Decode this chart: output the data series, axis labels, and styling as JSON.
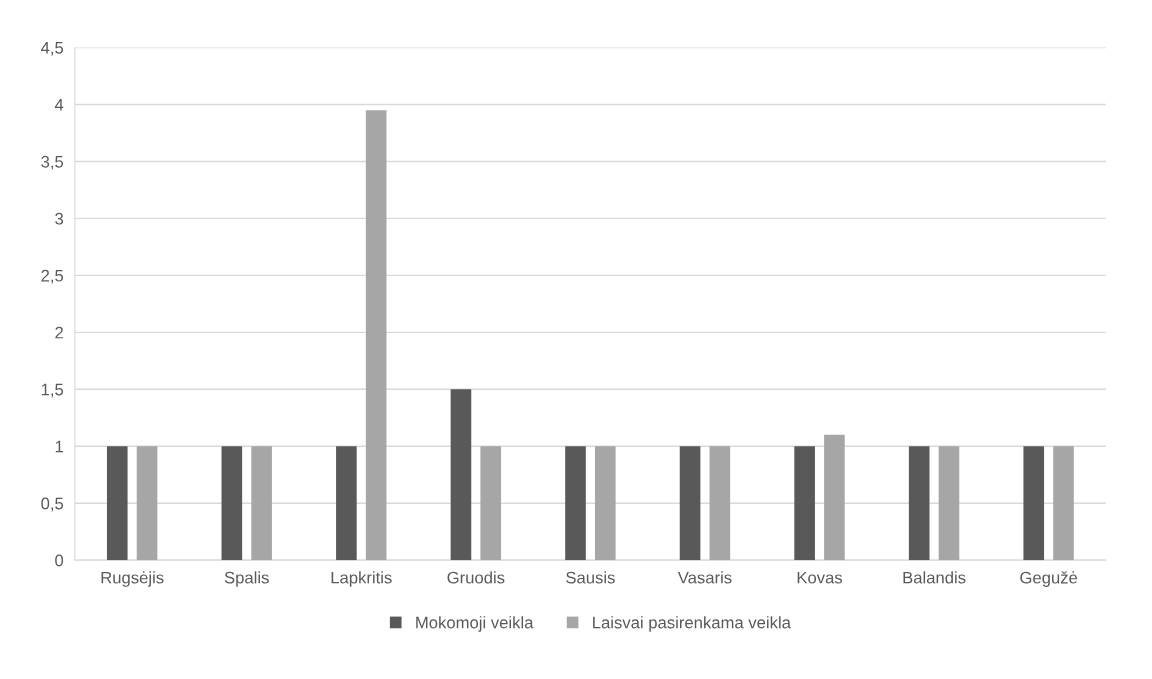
{
  "chart_data": {
    "type": "bar",
    "categories": [
      "Rugsėjis",
      "Spalis",
      "Lapkritis",
      "Gruodis",
      "Sausis",
      "Vasaris",
      "Kovas",
      "Balandis",
      "Gegužė"
    ],
    "series": [
      {
        "name": "Mokomoji veikla",
        "color": "#595959",
        "values": [
          1,
          1,
          1,
          1.5,
          1,
          1,
          1,
          1,
          1
        ]
      },
      {
        "name": "Laisvai pasirenkama veikla",
        "color": "#a6a6a6",
        "values": [
          1,
          1,
          3.95,
          1,
          1,
          1,
          1.1,
          1,
          1
        ]
      }
    ],
    "ylim": [
      0,
      4.5
    ],
    "yticks": [
      0,
      {
        "value": 0.5,
        "label": "0,5"
      },
      1,
      {
        "value": 1.5,
        "label": "1,5"
      },
      2,
      {
        "value": 2.5,
        "label": "2,5"
      },
      3,
      {
        "value": 3.5,
        "label": "3,5"
      },
      4,
      {
        "value": 4.5,
        "label": "4,5"
      }
    ],
    "grid": "y",
    "legend": "bottom"
  }
}
